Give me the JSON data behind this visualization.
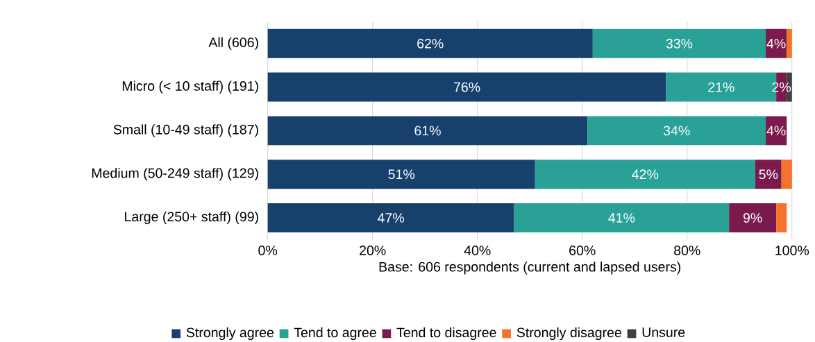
{
  "chart_data": {
    "type": "bar",
    "orientation": "horizontal",
    "stacked": true,
    "categories": [
      "All (606)",
      "Micro (< 10 staff) (191)",
      "Small (10-49 staff) (187)",
      "Medium (50-249 staff) (129)",
      "Large (250+ staff) (99)"
    ],
    "series": [
      {
        "name": "Strongly agree",
        "color": "#17406d",
        "values": [
          62,
          76,
          61,
          51,
          47
        ],
        "value_labels": [
          "62%",
          "76%",
          "61%",
          "51%",
          "47%"
        ]
      },
      {
        "name": "Tend to agree",
        "color": "#2aa197",
        "values": [
          33,
          21,
          34,
          42,
          41
        ],
        "value_labels": [
          "33%",
          "21%",
          "34%",
          "42%",
          "41%"
        ]
      },
      {
        "name": "Tend to disagree",
        "color": "#7b1a4c",
        "values": [
          4,
          2,
          4,
          5,
          9
        ],
        "value_labels": [
          "4%",
          "2%",
          "4%",
          "5%",
          "9%"
        ]
      },
      {
        "name": "Strongly disagree",
        "color": "#f4722b",
        "values": [
          1,
          null,
          null,
          2,
          2
        ],
        "value_labels": [
          null,
          null,
          null,
          null,
          null
        ]
      },
      {
        "name": "Unsure",
        "color": "#404040",
        "values": [
          null,
          1,
          null,
          null,
          null
        ],
        "value_labels": [
          null,
          null,
          null,
          null,
          null
        ]
      }
    ],
    "xlim": [
      0,
      100
    ],
    "xticks": [
      {
        "value": 0,
        "label": "0%"
      },
      {
        "value": 20,
        "label": "20%"
      },
      {
        "value": 40,
        "label": "40%"
      },
      {
        "value": 60,
        "label": "60%"
      },
      {
        "value": 80,
        "label": "80%"
      },
      {
        "value": 100,
        "label": "100%"
      }
    ],
    "xlabel": "Base: 606 respondents (current and lapsed users)",
    "grid": "x",
    "legend": "bottom"
  }
}
